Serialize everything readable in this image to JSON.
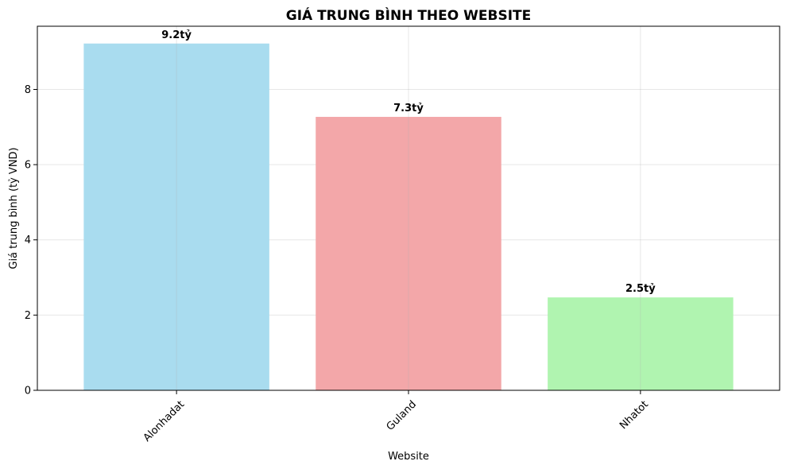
{
  "chart_data": {
    "type": "bar",
    "title": "GIÁ TRUNG BÌNH THEO WEBSITE",
    "xlabel": "Website",
    "ylabel": "Giá trung bình (tỷ VND)",
    "categories": [
      "Alonhadat",
      "Guland",
      "Nhatot"
    ],
    "values": [
      9.22,
      7.27,
      2.47
    ],
    "data_labels": [
      "9.2tỷ",
      "7.3tỷ",
      "2.5tỷ"
    ],
    "colors": [
      "#a9dcef",
      "#f3a7a9",
      "#b0f4b0"
    ],
    "ylim": [
      0,
      9.68
    ],
    "yticks": [
      0,
      2,
      4,
      6,
      8
    ],
    "grid": true,
    "legend": "none"
  }
}
